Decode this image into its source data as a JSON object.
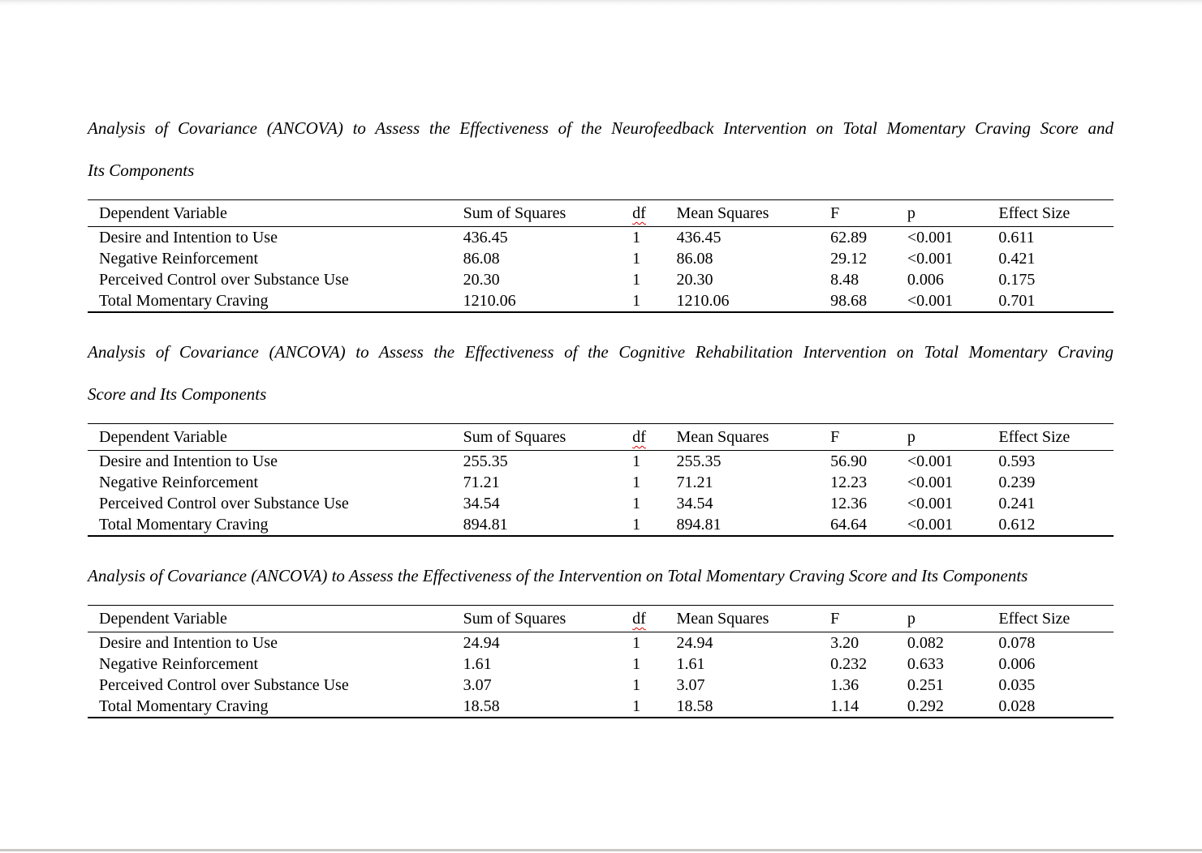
{
  "page": {
    "background_color": "#ffffff",
    "text_color": "#000000",
    "top_edge_color": "#e7e7e7",
    "bottom_edge_color": "#cac9c6"
  },
  "decorations": {
    "misspelled_header": "df",
    "spellcheck_underline_color": "#e00000"
  },
  "tables": [
    {
      "caption_lines": [
        "Analysis of Covariance (ANCOVA) to Assess the Effectiveness of the Neurofeedback Intervention on Total Momentary Craving Score and",
        "Its Components"
      ],
      "columns": [
        "Dependent Variable",
        "Sum of Squares",
        "df",
        "Mean Squares",
        "F",
        "p",
        "Effect Size"
      ],
      "rows": [
        [
          "Desire and Intention to Use",
          "436.45",
          "1",
          "436.45",
          "62.89",
          "<0.001",
          "0.611"
        ],
        [
          "Negative Reinforcement",
          "86.08",
          "1",
          "86.08",
          "29.12",
          "<0.001",
          "0.421"
        ],
        [
          "Perceived Control over Substance Use",
          "20.30",
          "1",
          "20.30",
          "8.48",
          "0.006",
          "0.175"
        ],
        [
          "Total Momentary Craving",
          "1210.06",
          "1",
          "1210.06",
          "98.68",
          "<0.001",
          "0.701"
        ]
      ]
    },
    {
      "caption_lines": [
        "Analysis of Covariance (ANCOVA) to Assess the Effectiveness of the Cognitive Rehabilitation Intervention on Total Momentary Craving",
        "Score and Its Components"
      ],
      "columns": [
        "Dependent Variable",
        "Sum of Squares",
        "df",
        "Mean Squares",
        "F",
        "p",
        "Effect Size"
      ],
      "rows": [
        [
          "Desire and Intention to Use",
          "255.35",
          "1",
          "255.35",
          "56.90",
          "<0.001",
          "0.593"
        ],
        [
          "Negative Reinforcement",
          "71.21",
          "1",
          "71.21",
          "12.23",
          "<0.001",
          "0.239"
        ],
        [
          "Perceived Control over Substance Use",
          "34.54",
          "1",
          "34.54",
          "12.36",
          "<0.001",
          "0.241"
        ],
        [
          "Total Momentary Craving",
          "894.81",
          "1",
          "894.81",
          "64.64",
          "<0.001",
          "0.612"
        ]
      ]
    },
    {
      "caption_lines": [
        "Analysis of Covariance (ANCOVA) to Assess the Effectiveness of the Intervention on Total Momentary Craving Score and Its Components"
      ],
      "columns": [
        "Dependent Variable",
        "Sum of Squares",
        "df",
        "Mean Squares",
        "F",
        "p",
        "Effect Size"
      ],
      "rows": [
        [
          "Desire and Intention to Use",
          "24.94",
          "1",
          "24.94",
          "3.20",
          "0.082",
          "0.078"
        ],
        [
          "Negative Reinforcement",
          "1.61",
          "1",
          "1.61",
          "0.232",
          "0.633",
          "0.006"
        ],
        [
          "Perceived Control over Substance Use",
          "3.07",
          "1",
          "3.07",
          "1.36",
          "0.251",
          "0.035"
        ],
        [
          "Total Momentary Craving",
          "18.58",
          "1",
          "18.58",
          "1.14",
          "0.292",
          "0.028"
        ]
      ]
    }
  ]
}
